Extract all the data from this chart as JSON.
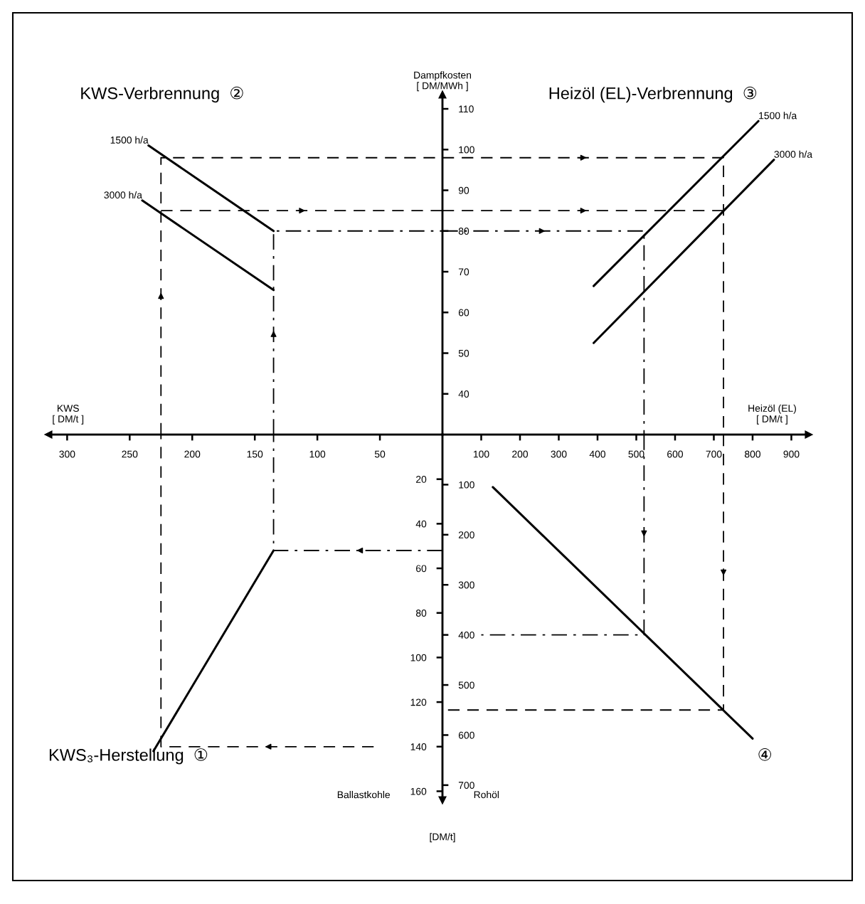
{
  "chart_data": [
    {
      "type": "line",
      "title": "KWS-Verbrennung  ②",
      "xlabel": "KWS\n[ DM/t ]",
      "ylabel": "Dampfkosten\n[ DM/MWh ]",
      "xlim": [
        315,
        0
      ],
      "ylim": [
        30,
        113.5
      ],
      "xticks": [
        300,
        250,
        200,
        150,
        100,
        50
      ],
      "yticks": [
        40,
        50,
        60,
        70,
        80,
        90,
        100,
        110
      ],
      "series": [
        {
          "name": "1500 h/a",
          "color": "#000000",
          "x": [
            235,
            135
          ],
          "values": [
            101,
            80
          ]
        },
        {
          "name": "3000 h/a",
          "color": "#000000",
          "x": [
            240,
            135
          ],
          "values": [
            87.5,
            65.5
          ]
        },
        {
          "color": "#000000",
          "line_style": "dashed",
          "x": [
            225,
            225,
            0
          ],
          "values": [
            30,
            98,
            98
          ]
        },
        {
          "color": "#000000",
          "line_style": "dashed",
          "x": [
            225,
            0
          ],
          "values": [
            85,
            85
          ]
        },
        {
          "color": "#000000",
          "line_style": "dashdot",
          "x": [
            135,
            135,
            0
          ],
          "values": [
            30,
            80,
            80
          ]
        }
      ]
    },
    {
      "type": "line",
      "title": "Heizöl (EL)-Verbrennung  ③",
      "xlabel": "Heizöl (EL)\n[ DM/t ]",
      "xlim": [
        0,
        945
      ],
      "ylim": [
        30,
        113.5
      ],
      "xticks": [
        100,
        200,
        300,
        400,
        500,
        600,
        700,
        800,
        900
      ],
      "yticks": [
        40,
        50,
        60,
        70,
        80,
        90,
        100,
        110
      ],
      "tick_labels": "x",
      "series": [
        {
          "name": "1500 h/a",
          "color": "#000000",
          "x": [
            390,
            815
          ],
          "values": [
            66.5,
            107
          ]
        },
        {
          "name": "3000 h/a",
          "color": "#000000",
          "x": [
            390,
            855
          ],
          "values": [
            52.5,
            97.5
          ]
        },
        {
          "color": "#000000",
          "line_style": "dashed",
          "x": [
            0,
            725,
            725
          ],
          "values": [
            98,
            98,
            30
          ]
        },
        {
          "color": "#000000",
          "line_style": "dashed",
          "x": [
            0,
            725
          ],
          "values": [
            85,
            85
          ]
        },
        {
          "color": "#000000",
          "line_style": "dashdot",
          "x": [
            0,
            520,
            520
          ],
          "values": [
            80,
            80,
            30
          ]
        }
      ]
    },
    {
      "type": "line",
      "title": "KWS₃-Herstellung  ①",
      "ylabel": "Ballastkohle",
      "annotations": [
        "[DM/t]"
      ],
      "xlim": [
        315,
        0
      ],
      "ylim": [
        164,
        0
      ],
      "xticks": [
        300,
        250,
        200,
        150,
        100,
        50
      ],
      "yticks": [
        20,
        40,
        60,
        80,
        100,
        120,
        140,
        160
      ],
      "tick_labels": "y",
      "series": [
        {
          "color": "#000000",
          "x": [
            231,
            135
          ],
          "values": [
            142,
            52
          ]
        },
        {
          "color": "#000000",
          "line_style": "dashed",
          "x": [
            55,
            225,
            225
          ],
          "values": [
            140,
            140,
            0
          ]
        },
        {
          "color": "#000000",
          "line_style": "dashdot",
          "x": [
            0,
            135,
            135
          ],
          "values": [
            52,
            52,
            0
          ]
        }
      ]
    },
    {
      "type": "line",
      "title": "④",
      "ylabel": "Rohöl",
      "xlim": [
        0,
        945
      ],
      "ylim": [
        730,
        0
      ],
      "xticks": [
        100,
        200,
        300,
        400,
        500,
        600,
        700,
        800,
        900
      ],
      "yticks": [
        100,
        200,
        300,
        400,
        500,
        600,
        700
      ],
      "tick_labels": "y",
      "series": [
        {
          "color": "#000000",
          "x": [
            130,
            800
          ],
          "values": [
            105,
            607
          ]
        },
        {
          "color": "#000000",
          "line_style": "dashed",
          "x": [
            725,
            725,
            0
          ],
          "values": [
            0,
            550,
            550
          ]
        },
        {
          "color": "#000000",
          "line_style": "dashdot",
          "x": [
            520,
            520,
            100
          ],
          "values": [
            0,
            400,
            400
          ]
        }
      ]
    }
  ]
}
